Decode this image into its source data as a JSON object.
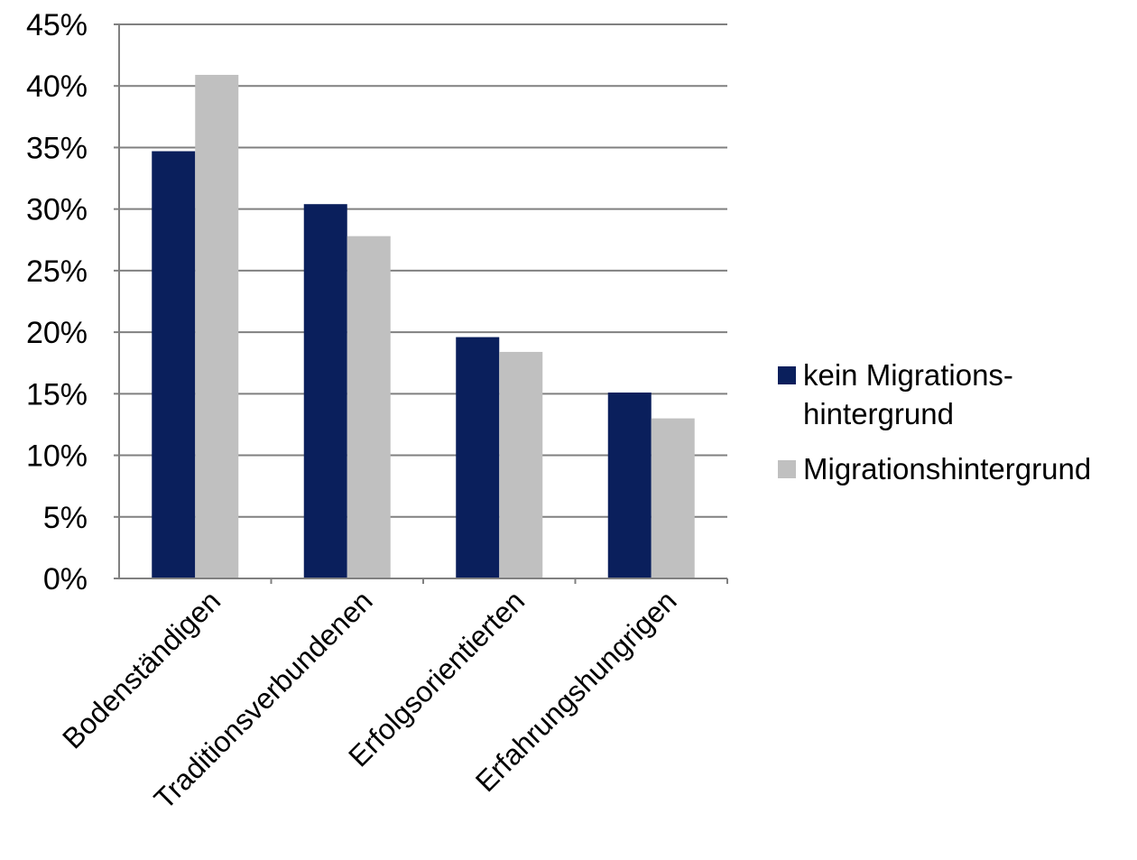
{
  "chart_data": {
    "type": "bar",
    "title": "",
    "xlabel": "",
    "ylabel": "",
    "categories": [
      "Bodenständigen",
      "Traditionsverbundenen",
      "Erfolgsorientierten",
      "Erfahrungshungrigen"
    ],
    "series": [
      {
        "name": "kein Migrationshintergrund",
        "legend_lines": [
          "kein Migrations-",
          "hintergrund"
        ],
        "color": "#0a1f5c",
        "values": [
          34.7,
          30.4,
          19.6,
          15.1
        ]
      },
      {
        "name": "Migrationshintergrund",
        "legend_lines": [
          "Migrationshintergrund"
        ],
        "color": "#c0c0c0",
        "values": [
          40.9,
          27.8,
          18.4,
          13.0
        ]
      }
    ],
    "ylim": [
      0,
      45
    ],
    "yticks": [
      0,
      5,
      10,
      15,
      20,
      25,
      30,
      35,
      40,
      45
    ],
    "ytick_labels": [
      "0%",
      "5%",
      "10%",
      "15%",
      "20%",
      "25%",
      "30%",
      "35%",
      "40%",
      "45%"
    ],
    "grid": true,
    "legend_position": "right"
  }
}
